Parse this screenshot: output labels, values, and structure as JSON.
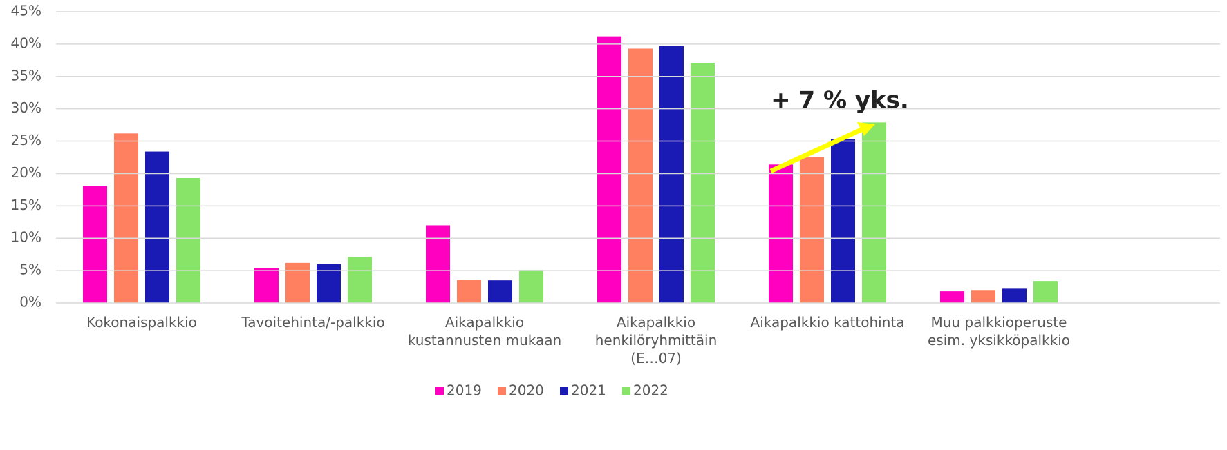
{
  "chart_data": {
    "type": "bar",
    "categories": [
      "Kokonaispalkkio",
      "Tavoitehinta/-palkkio",
      "Aikapalkkio\nkustannusten mukaan",
      "Aikapalkkio\nhenkilöryhmittäin\n(E…07)",
      "Aikapalkkio kattohinta",
      "Muu palkkioperuste\nesim. yksikköpalkkio"
    ],
    "series": [
      {
        "name": "2019",
        "color": "#ff00c0",
        "values": [
          18.1,
          5.4,
          12.0,
          41.2,
          21.4,
          1.8
        ]
      },
      {
        "name": "2020",
        "color": "#ff8060",
        "values": [
          26.2,
          6.2,
          3.6,
          39.3,
          22.5,
          2.0
        ]
      },
      {
        "name": "2021",
        "color": "#1a1ab4",
        "values": [
          23.4,
          6.0,
          3.5,
          39.7,
          25.3,
          2.2
        ]
      },
      {
        "name": "2022",
        "color": "#88e468",
        "values": [
          19.3,
          7.1,
          5.1,
          37.1,
          27.9,
          3.4
        ]
      }
    ],
    "ylim": [
      0,
      45
    ],
    "yticks": [
      {
        "value": 0,
        "label": "0%"
      },
      {
        "value": 5,
        "label": "5%"
      },
      {
        "value": 10,
        "label": "10%"
      },
      {
        "value": 15,
        "label": "15%"
      },
      {
        "value": 20,
        "label": "20%"
      },
      {
        "value": 25,
        "label": "25%"
      },
      {
        "value": 30,
        "label": "30%"
      },
      {
        "value": 35,
        "label": "35%"
      },
      {
        "value": 40,
        "label": "40%"
      },
      {
        "value": 45,
        "label": "45%"
      }
    ],
    "grid": true,
    "legend": "bottom",
    "annotation": "+ 7 % yks."
  }
}
